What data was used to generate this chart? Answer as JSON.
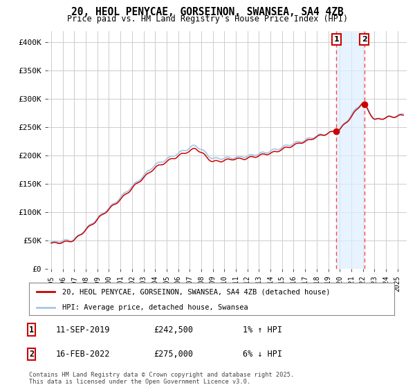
{
  "title": "20, HEOL PENYCAE, GORSEINON, SWANSEA, SA4 4ZB",
  "subtitle": "Price paid vs. HM Land Registry's House Price Index (HPI)",
  "ylim": [
    0,
    420000
  ],
  "yticks": [
    0,
    50000,
    100000,
    150000,
    200000,
    250000,
    300000,
    350000,
    400000
  ],
  "ytick_labels": [
    "£0",
    "£50K",
    "£100K",
    "£150K",
    "£200K",
    "£250K",
    "£300K",
    "£350K",
    "£400K"
  ],
  "hpi_color": "#a8c8e8",
  "price_color": "#cc0000",
  "vline_color": "#ff4444",
  "shade_color": "#ddeeff",
  "vline1_year": 2019.71,
  "vline2_year": 2022.12,
  "sale1_price_val": 242500,
  "sale2_price_val": 275000,
  "sale1_date": "11-SEP-2019",
  "sale1_price": "£242,500",
  "sale1_hpi": "1% ↑ HPI",
  "sale2_date": "16-FEB-2022",
  "sale2_price": "£275,000",
  "sale2_hpi": "6% ↓ HPI",
  "legend_price": "20, HEOL PENYCAE, GORSEINON, SWANSEA, SA4 4ZB (detached house)",
  "legend_hpi": "HPI: Average price, detached house, Swansea",
  "footer": "Contains HM Land Registry data © Crown copyright and database right 2025.\nThis data is licensed under the Open Government Licence v3.0.",
  "background_color": "#ffffff",
  "grid_color": "#cccccc"
}
